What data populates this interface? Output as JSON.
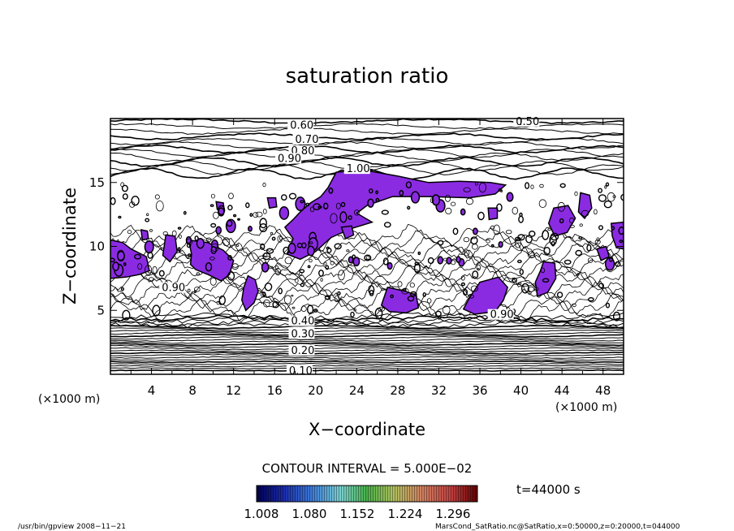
{
  "chart_data": {
    "type": "contour",
    "title": "saturation ratio",
    "xlabel": "X−coordinate",
    "ylabel": "Z−coordinate",
    "x_unit": "(×1000 m)",
    "y_unit": "(×1000 m)",
    "xlim": [
      0,
      50
    ],
    "ylim": [
      0,
      20
    ],
    "x_ticks": [
      4,
      8,
      12,
      16,
      20,
      24,
      28,
      32,
      36,
      40,
      44,
      48
    ],
    "y_ticks": [
      5,
      10,
      15
    ],
    "contour_labels_upper": [
      {
        "label": "0.60",
        "x": 17.5,
        "z": 19.2
      },
      {
        "label": "0.50",
        "x": 39.5,
        "z": 19.5
      },
      {
        "label": "0.70",
        "x": 18.0,
        "z": 18.1
      },
      {
        "label": "0.80",
        "x": 17.6,
        "z": 17.2
      },
      {
        "label": "0.90",
        "x": 16.3,
        "z": 16.6
      },
      {
        "label": "1.00",
        "x": 23.0,
        "z": 15.8
      }
    ],
    "contour_labels_lower": [
      {
        "label": "0.90",
        "x": 5.0,
        "z": 6.5
      },
      {
        "label": "0.90",
        "x": 37.0,
        "z": 4.4
      },
      {
        "label": "0.40",
        "x": 17.6,
        "z": 3.9
      },
      {
        "label": "0.30",
        "x": 17.6,
        "z": 2.9
      },
      {
        "label": "0.20",
        "x": 17.6,
        "z": 1.6
      },
      {
        "label": "0.10",
        "x": 17.4,
        "z": 0.0
      }
    ],
    "supersaturated_fill_color": "#8a2be2",
    "contour_interval_text": "CONTOUR INTERVAL = 5.000E−02",
    "colorbar_ticks": [
      "1.008",
      "1.080",
      "1.152",
      "1.224",
      "1.296"
    ],
    "time_label": "t=44000 s"
  },
  "footer": {
    "left": "/usr/bin/gpview  2008−11−21",
    "right": "MarsCond_SatRatio.nc@SatRatio,x=0:50000,z=0:20000,t=044000"
  }
}
